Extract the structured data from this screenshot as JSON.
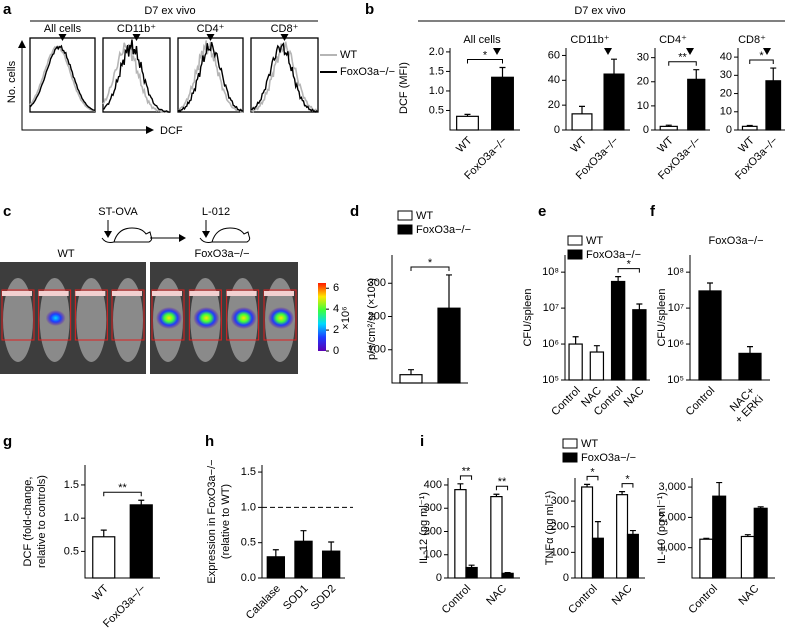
{
  "chart_data": [
    {
      "label": "a",
      "type": "flow",
      "title": "D7 ex vivo",
      "ylabel": "No. cells",
      "xlabel": "DCF",
      "panels": [
        "All cells",
        "CD11b⁺",
        "CD4⁺",
        "CD8⁺"
      ],
      "series": [
        {
          "name": "WT",
          "color": "#b5b5b5"
        },
        {
          "name": "FoxO3a−/−",
          "color": "#000000"
        }
      ]
    },
    {
      "label": "b",
      "type": "bar-group",
      "title": "D7 ex vivo",
      "ylabel": "DCF (MFI)",
      "charts": [
        {
          "type": "bar",
          "title": "All cells",
          "categories": [
            "WT",
            "FoxO3a−/−"
          ],
          "values": [
            0.35,
            1.35
          ],
          "errors": [
            0.05,
            0.25
          ],
          "colors": [
            "#ffffff",
            "#000000"
          ],
          "ylim": [
            0,
            2.1
          ],
          "yticks": [
            0.5,
            {
              "value": 1,
              "label": "1.0"
            },
            1.5,
            {
              "value": 2,
              "label": "2.0"
            }
          ],
          "significance": [
            "*"
          ]
        },
        {
          "type": "bar",
          "title": "CD11b⁺",
          "categories": [
            "WT",
            "FoxO3a−/−"
          ],
          "values": [
            13,
            45
          ],
          "errors": [
            6,
            12
          ],
          "colors": [
            "#ffffff",
            "#000000"
          ],
          "ylim": [
            0,
            66
          ],
          "yticks": [
            0,
            20,
            40,
            60
          ]
        },
        {
          "type": "bar",
          "title": "CD4⁺",
          "categories": [
            "WT",
            "FoxO3a−/−"
          ],
          "values": [
            1.5,
            21
          ],
          "errors": [
            0.5,
            4
          ],
          "colors": [
            "#ffffff",
            "#000000"
          ],
          "ylim": [
            0,
            34
          ],
          "yticks": [
            0,
            10,
            20,
            30
          ],
          "significance": [
            "**"
          ]
        },
        {
          "type": "bar",
          "title": "CD8⁺",
          "categories": [
            "WT",
            "FoxO3a−/−"
          ],
          "values": [
            2,
            27
          ],
          "errors": [
            0.5,
            7
          ],
          "colors": [
            "#ffffff",
            "#000000"
          ],
          "ylim": [
            0,
            45
          ],
          "yticks": [
            0,
            10,
            20,
            30,
            40
          ],
          "significance": [
            "*"
          ]
        }
      ]
    },
    {
      "label": "c",
      "type": "image",
      "steps": [
        "ST-OVA",
        "L-012"
      ],
      "groups": [
        "WT",
        "FoxO3a−/−"
      ],
      "colorbar": {
        "lim": [
          0,
          6.5
        ],
        "ticks": [
          0,
          2,
          4,
          6
        ],
        "label": "×10⁶"
      }
    },
    {
      "label": "d",
      "type": "bar",
      "ylabel": "p/s/cm²/sr (×10⁵)",
      "series": [
        {
          "name": "WT",
          "color": "#ffffff",
          "values": [
            25,
            null
          ],
          "errors": [
            15,
            null
          ]
        },
        {
          "name": "FoxO3a−/−",
          "color": "#000000",
          "values": [
            null,
            225
          ],
          "errors": [
            null,
            100
          ]
        }
      ],
      "ylim": [
        0,
        385
      ],
      "yticks": [
        100,
        200,
        300
      ],
      "significance": [
        "*"
      ]
    },
    {
      "label": "e",
      "type": "bar",
      "ylabel": "CFU/spleen",
      "categories": [
        "Control",
        "NAC",
        "Control",
        "NAC"
      ],
      "yscale": "log",
      "series": [
        {
          "name": "WT",
          "color": "#ffffff",
          "values": [
            1000000,
            600000,
            null,
            null
          ],
          "errors": [
            600000,
            300000,
            null,
            null
          ]
        },
        {
          "name": "FoxO3a−/−",
          "color": "#000000",
          "values": [
            null,
            null,
            55000000,
            9000000
          ],
          "errors": [
            null,
            null,
            20000000,
            4000000
          ]
        }
      ],
      "ylim": [
        100000,
        300000000
      ],
      "yticks": [
        {
          "value": 100000,
          "label": "10⁵"
        },
        {
          "value": 1000000,
          "label": "10⁶"
        },
        {
          "value": 10000000,
          "label": "10⁷"
        },
        {
          "value": 100000000,
          "label": "10⁸"
        }
      ],
      "significance": [
        "*"
      ]
    },
    {
      "label": "f",
      "type": "bar",
      "title": "FoxO3a−/−",
      "ylabel": "CFU/spleen",
      "categories": [
        "Control",
        "NAC+\n+ ERKi"
      ],
      "yscale": "log",
      "values": [
        30000000,
        550000
      ],
      "errors": [
        20000000,
        300000
      ],
      "colors": [
        "#000000",
        "#000000"
      ],
      "ylim": [
        100000,
        300000000
      ],
      "yticks": [
        {
          "value": 100000,
          "label": "10⁵"
        },
        {
          "value": 1000000,
          "label": "10⁶"
        },
        {
          "value": 10000000,
          "label": "10⁷"
        },
        {
          "value": 100000000,
          "label": "10⁸"
        }
      ]
    },
    {
      "label": "g",
      "type": "bar",
      "ylabel": [
        "DCF (fold-change,",
        "relative to controls)"
      ],
      "categories": [
        "WT",
        "FoxO3a−/−"
      ],
      "values": [
        0.72,
        1.2
      ],
      "errors": [
        0.1,
        0.07
      ],
      "colors": [
        "#ffffff",
        "#000000"
      ],
      "ylim": [
        0.1,
        1.8
      ],
      "yticks": [
        0.5,
        {
          "value": 1,
          "label": "1.0"
        },
        1.5
      ],
      "significance": [
        "**"
      ]
    },
    {
      "label": "h",
      "type": "bar",
      "ylabel": [
        "Expression in FoxO3a−/−",
        "(relative to WT)"
      ],
      "categories": [
        "Catalase",
        "SOD1",
        "SOD2"
      ],
      "values": [
        0.3,
        0.52,
        0.38
      ],
      "errors": [
        0.1,
        0.15,
        0.13
      ],
      "colors": [
        "#000000",
        "#000000",
        "#000000"
      ],
      "ylim": [
        0,
        1.6
      ],
      "yticks": [
        {
          "value": 0,
          "label": "0.0"
        },
        0.5,
        {
          "value": 1,
          "label": "1.0"
        },
        1.5
      ],
      "reference_line": 1
    },
    {
      "label": "i",
      "type": "bar-group",
      "legend": [
        {
          "name": "WT",
          "color": "#ffffff"
        },
        {
          "name": "FoxO3a−/−",
          "color": "#000000"
        }
      ],
      "charts": [
        {
          "type": "bar",
          "ylabel": "IL-12 (pg ml⁻¹)",
          "categories": [
            "Control",
            "NAC"
          ],
          "series": [
            {
              "color": "#ffffff",
              "values": [
                380,
                350
              ],
              "errors": [
                25,
                10
              ]
            },
            {
              "color": "#000000",
              "values": [
                45,
                20
              ],
              "errors": [
                10,
                3
              ]
            }
          ],
          "ylim": [
            0,
            430
          ],
          "yticks": [
            0,
            100,
            200,
            300,
            400
          ],
          "significance": [
            "**",
            "**"
          ]
        },
        {
          "type": "bar",
          "ylabel": "TNFα (pg ml⁻¹)",
          "categories": [
            "Control",
            "NAC"
          ],
          "series": [
            {
              "color": "#ffffff",
              "values": [
                355,
                325
              ],
              "errors": [
                10,
                12
              ]
            },
            {
              "color": "#000000",
              "values": [
                155,
                170
              ],
              "errors": [
                65,
                15
              ]
            }
          ],
          "ylim": [
            0,
            390
          ],
          "yticks": [
            0,
            100,
            200,
            300
          ],
          "significance": [
            "*",
            "*"
          ]
        },
        {
          "type": "bar",
          "ylabel": "IL-10 (pg ml⁻¹)",
          "categories": [
            "Control",
            "NAC"
          ],
          "series": [
            {
              "color": "#ffffff",
              "values": [
                1280,
                1370
              ],
              "errors": [
                30,
                60
              ]
            },
            {
              "color": "#000000",
              "values": [
                2700,
                2300
              ],
              "errors": [
                450,
                50
              ]
            }
          ],
          "ylim": [
            0,
            3300
          ],
          "yticks": [
            {
              "value": 1000,
              "label": "1,000"
            },
            {
              "value": 2000,
              "label": "2,000"
            },
            {
              "value": 3000,
              "label": "3,000"
            }
          ]
        }
      ]
    }
  ]
}
